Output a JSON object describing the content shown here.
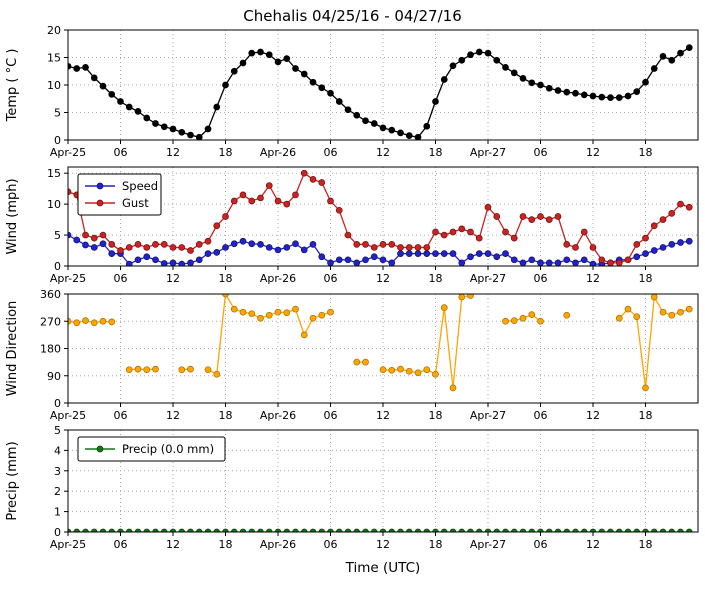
{
  "chart_data": {
    "type": "line",
    "title": "Chehalis 04/25/16 - 04/27/16",
    "xlabel": "Time (UTC)",
    "xlim": [
      0,
      72
    ],
    "grid": true,
    "x_hours": [
      0,
      1,
      2,
      3,
      4,
      5,
      6,
      7,
      8,
      9,
      10,
      11,
      12,
      13,
      14,
      15,
      16,
      17,
      18,
      19,
      20,
      21,
      22,
      23,
      24,
      25,
      26,
      27,
      28,
      29,
      30,
      31,
      32,
      33,
      34,
      35,
      36,
      37,
      38,
      39,
      40,
      41,
      42,
      43,
      44,
      45,
      46,
      47,
      48,
      49,
      50,
      51,
      52,
      53,
      54,
      55,
      56,
      57,
      58,
      59,
      60,
      61,
      62,
      63,
      64,
      65,
      66,
      67,
      68,
      69,
      70,
      71
    ],
    "xticks": {
      "positions": [
        0,
        6,
        12,
        18,
        24,
        30,
        36,
        42,
        48,
        54,
        60,
        66
      ],
      "labels": [
        "Apr-25",
        "06",
        "12",
        "18",
        "Apr-26",
        "06",
        "12",
        "18",
        "Apr-27",
        "06",
        "12",
        "18"
      ]
    },
    "subplots": [
      {
        "name": "temp",
        "ylabel": "Temp ( °C )",
        "ylim": [
          0,
          20
        ],
        "yticks": [
          0,
          5,
          10,
          15,
          20
        ],
        "series": [
          {
            "name": "Temp",
            "color": "#000000",
            "edge": "#000000",
            "values": [
              13.4,
              13,
              13.2,
              11.3,
              9.8,
              8.3,
              7,
              6,
              5.2,
              4,
              3,
              2.4,
              2,
              1.4,
              0.9,
              0.5,
              2,
              6,
              10,
              12.5,
              14,
              15.8,
              16,
              15.5,
              14.2,
              14.8,
              13,
              12,
              10.5,
              9.5,
              8.5,
              7,
              5.5,
              4.5,
              3.5,
              3,
              2.2,
              1.8,
              1.3,
              0.8,
              0.5,
              2.5,
              7,
              11,
              13.5,
              14.5,
              15.5,
              16,
              15.8,
              14.5,
              13.2,
              12.2,
              11.2,
              10.4,
              10,
              9.4,
              9,
              8.7,
              8.5,
              8.2,
              8,
              7.8,
              7.7,
              7.7,
              8,
              8.8,
              10.5,
              13,
              15.2,
              14.5,
              15.8,
              16.8
            ]
          }
        ]
      },
      {
        "name": "wind",
        "ylabel": "Wind (mph)",
        "ylim": [
          0,
          16
        ],
        "yticks": [
          0,
          5,
          10,
          15
        ],
        "legend": {
          "position": "upper-left",
          "labels": [
            "Speed",
            "Gust"
          ]
        },
        "series": [
          {
            "name": "Speed",
            "color": "#2222cc",
            "edge": "#10106a",
            "values": [
              5,
              4.2,
              3.4,
              3,
              3.6,
              2,
              2,
              0.3,
              1,
              1.5,
              1,
              0.4,
              0.5,
              0.3,
              0.5,
              1,
              2,
              2.2,
              3,
              3.6,
              4,
              3.6,
              3.5,
              3,
              2.6,
              3,
              3.6,
              2.6,
              3.5,
              1.5,
              0.5,
              1,
              1,
              0.5,
              1,
              1.5,
              1,
              0.5,
              2,
              2,
              2,
              2,
              2,
              2,
              2,
              0.5,
              1.5,
              2,
              2,
              1.5,
              2,
              1,
              0.5,
              1,
              0.5,
              0.5,
              0.5,
              1,
              0.5,
              1,
              0.3,
              0.3,
              0.5,
              1,
              1,
              1.5,
              2,
              2.5,
              3,
              3.5,
              3.8,
              4
            ]
          },
          {
            "name": "Gust",
            "color": "#cc2222",
            "edge": "#6a1010",
            "values": [
              12,
              11.5,
              5,
              4.5,
              5,
              3.5,
              2.5,
              3,
              3.5,
              3,
              3.5,
              3.5,
              3,
              3,
              2.5,
              3.5,
              4,
              6.5,
              8,
              10.5,
              11.5,
              10.5,
              11,
              13,
              10.5,
              10,
              11.5,
              15,
              14,
              13.5,
              10.5,
              9,
              5,
              3.5,
              3.5,
              3,
              3.5,
              3.5,
              3,
              3,
              3,
              3,
              5.5,
              5,
              5.5,
              6,
              5.5,
              4.5,
              9.5,
              8,
              5.5,
              4.5,
              8,
              7.5,
              8,
              7.5,
              8,
              3.5,
              3,
              5.5,
              3,
              1,
              0.5,
              0.5,
              1,
              3.5,
              4.5,
              6.5,
              7.5,
              8.5,
              10,
              9.5
            ]
          }
        ]
      },
      {
        "name": "wind-direction",
        "ylabel": "Wind Direction",
        "ylim": [
          0,
          360
        ],
        "yticks": [
          0,
          90,
          180,
          270,
          360
        ],
        "series": [
          {
            "name": "Direction",
            "color": "#ffa500",
            "edge": "#a86e00",
            "values": [
              270,
              265,
              272,
              265,
              270,
              268,
              null,
              110,
              112,
              110,
              112,
              null,
              null,
              110,
              112,
              null,
              110,
              95,
              360,
              310,
              300,
              295,
              280,
              290,
              300,
              298,
              310,
              225,
              280,
              290,
              300,
              null,
              null,
              135,
              135,
              null,
              110,
              108,
              112,
              105,
              100,
              110,
              95,
              315,
              50,
              350,
              355,
              null,
              null,
              null,
              270,
              272,
              280,
              292,
              270,
              null,
              null,
              290,
              null,
              null,
              null,
              null,
              null,
              280,
              310,
              285,
              50,
              350,
              300,
              290,
              300,
              310
            ]
          }
        ]
      },
      {
        "name": "precip",
        "ylabel": "Precip (mm)",
        "ylim": [
          0,
          5
        ],
        "yticks": [
          0,
          1,
          2,
          3,
          4,
          5
        ],
        "legend": {
          "position": "upper-left",
          "labels": [
            "Precip (0.0 mm)"
          ]
        },
        "series": [
          {
            "name": "Precip",
            "color": "#117711",
            "edge": "#073f07",
            "values": [
              0,
              0,
              0,
              0,
              0,
              0,
              0,
              0,
              0,
              0,
              0,
              0,
              0,
              0,
              0,
              0,
              0,
              0,
              0,
              0,
              0,
              0,
              0,
              0,
              0,
              0,
              0,
              0,
              0,
              0,
              0,
              0,
              0,
              0,
              0,
              0,
              0,
              0,
              0,
              0,
              0,
              0,
              0,
              0,
              0,
              0,
              0,
              0,
              0,
              0,
              0,
              0,
              0,
              0,
              0,
              0,
              0,
              0,
              0,
              0,
              0,
              0,
              0,
              0,
              0,
              0,
              0,
              0,
              0,
              0,
              0,
              0
            ]
          }
        ]
      }
    ]
  }
}
